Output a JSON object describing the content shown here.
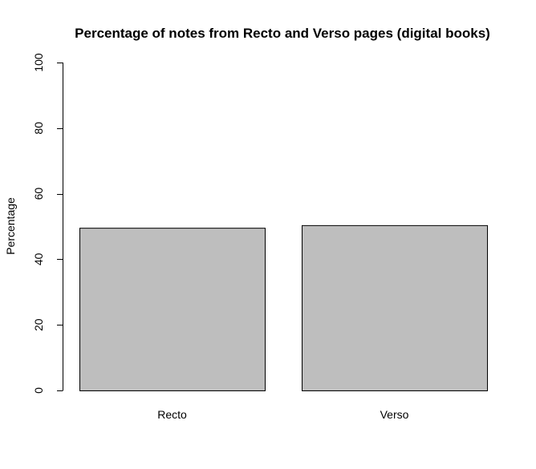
{
  "chart_data": {
    "type": "bar",
    "title": "Percentage of notes from Recto and Verso pages (digital books)",
    "xlabel": "",
    "ylabel": "Percentage",
    "categories": [
      "Recto",
      "Verso"
    ],
    "values": [
      49.6,
      50.4
    ],
    "ylim": [
      0,
      100
    ],
    "yticks": [
      "0",
      "20",
      "40",
      "60",
      "80",
      "100"
    ],
    "grid": false,
    "legend": "none",
    "bar_color": "#bebebe"
  }
}
